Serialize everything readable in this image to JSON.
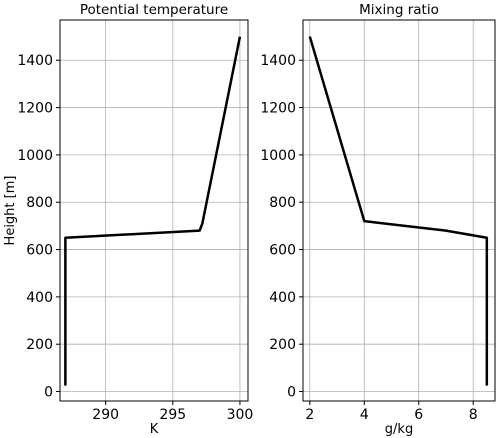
{
  "chart_data": [
    {
      "type": "line",
      "title": "Potential temperature",
      "xlabel": "K",
      "ylabel": "Height [m]",
      "xlim": [
        286.6,
        300.6
      ],
      "ylim": [
        -40,
        1570
      ],
      "xticks": [
        290,
        295,
        300
      ],
      "yticks": [
        0,
        200,
        400,
        600,
        800,
        1000,
        1200,
        1400
      ],
      "grid": true,
      "series": [
        {
          "color": "#000000",
          "x": [
            287.0,
            287.0,
            297.0,
            297.2,
            300.0
          ],
          "y": [
            25,
            650,
            680,
            710,
            1500
          ]
        }
      ]
    },
    {
      "type": "line",
      "title": "Mixing ratio",
      "xlabel": "g/kg",
      "ylabel": "",
      "xlim": [
        1.75,
        8.8
      ],
      "ylim": [
        -40,
        1570
      ],
      "xticks": [
        2,
        4,
        6,
        8
      ],
      "yticks": [
        0,
        200,
        400,
        600,
        800,
        1000,
        1200,
        1400
      ],
      "grid": true,
      "series": [
        {
          "color": "#000000",
          "x": [
            2.0,
            4.0,
            7.0,
            8.5,
            8.5
          ],
          "y": [
            1500,
            720,
            680,
            650,
            25
          ]
        }
      ]
    }
  ]
}
